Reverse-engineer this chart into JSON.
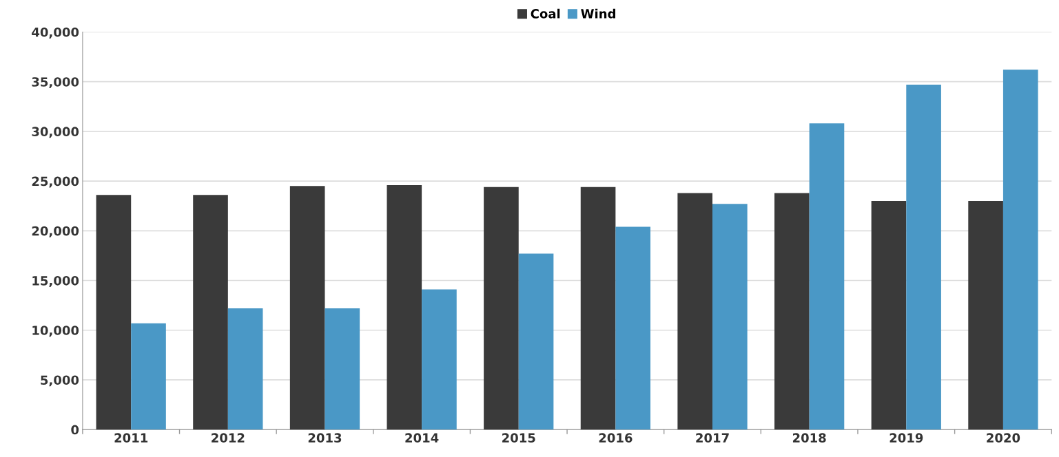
{
  "chart_data": {
    "type": "bar",
    "categories": [
      "2011",
      "2012",
      "2013",
      "2014",
      "2015",
      "2016",
      "2017",
      "2018",
      "2019",
      "2020"
    ],
    "series": [
      {
        "name": "Coal",
        "color": "#3a3a3a",
        "values": [
          23600,
          23600,
          24500,
          24600,
          24400,
          24400,
          23800,
          23800,
          23000,
          23000
        ]
      },
      {
        "name": "Wind",
        "color": "#4a98c6",
        "values": [
          10700,
          12200,
          12200,
          14100,
          17700,
          20400,
          22700,
          30800,
          34700,
          36200
        ]
      }
    ],
    "ylim": [
      0,
      40000
    ],
    "yticks": [
      {
        "value": 0,
        "label": "0"
      },
      {
        "value": 5000,
        "label": "5,000"
      },
      {
        "value": 10000,
        "label": "10,000"
      },
      {
        "value": 15000,
        "label": "15,000"
      },
      {
        "value": 20000,
        "label": "20,000"
      },
      {
        "value": 25000,
        "label": "25,000"
      },
      {
        "value": 30000,
        "label": "30,000"
      },
      {
        "value": 35000,
        "label": "35,000"
      },
      {
        "value": 40000,
        "label": "40,000"
      }
    ],
    "grid": "y",
    "legend": "top"
  }
}
